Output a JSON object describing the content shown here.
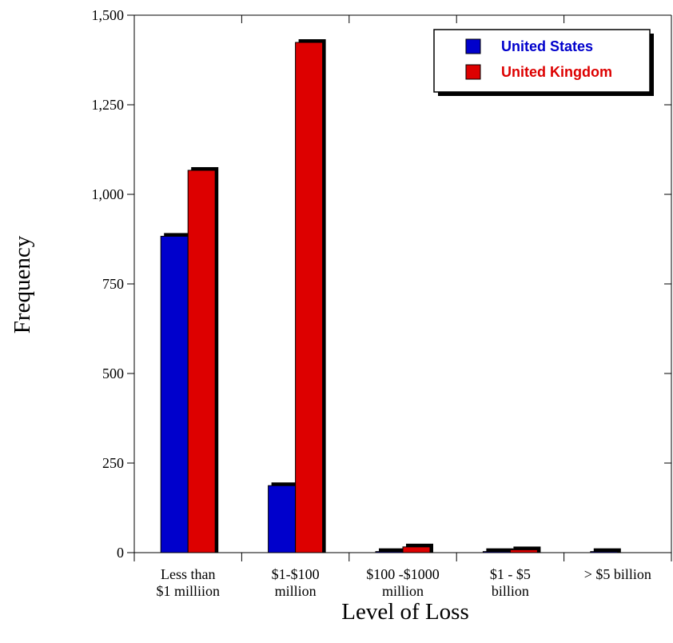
{
  "chart_data": {
    "type": "bar",
    "xlabel": "Level of Loss",
    "ylabel": "Frequency",
    "categories": [
      [
        "Less than",
        "$1 milliion"
      ],
      [
        "$1-$100",
        "million"
      ],
      [
        "$100 -$1000",
        "million"
      ],
      [
        "$1 - $5",
        "billion"
      ],
      [
        "> $5 billion"
      ]
    ],
    "series": [
      {
        "name": "United States",
        "color": "#0000cc",
        "text_color": "#0000cc",
        "values": [
          883,
          187,
          3,
          3,
          3
        ]
      },
      {
        "name": "United Kingdom",
        "color": "#dd0000",
        "text_color": "#dd0000",
        "values": [
          1067,
          1424,
          16,
          8,
          0
        ]
      }
    ],
    "ylim": [
      0,
      1500
    ],
    "yticks": [
      0,
      250,
      500,
      750,
      1000,
      1250,
      1500
    ],
    "ytick_labels": [
      "0",
      "250",
      "500",
      "750",
      "1,000",
      "1,250",
      "1,500"
    ],
    "grid": false,
    "legend_position": "top-right"
  }
}
